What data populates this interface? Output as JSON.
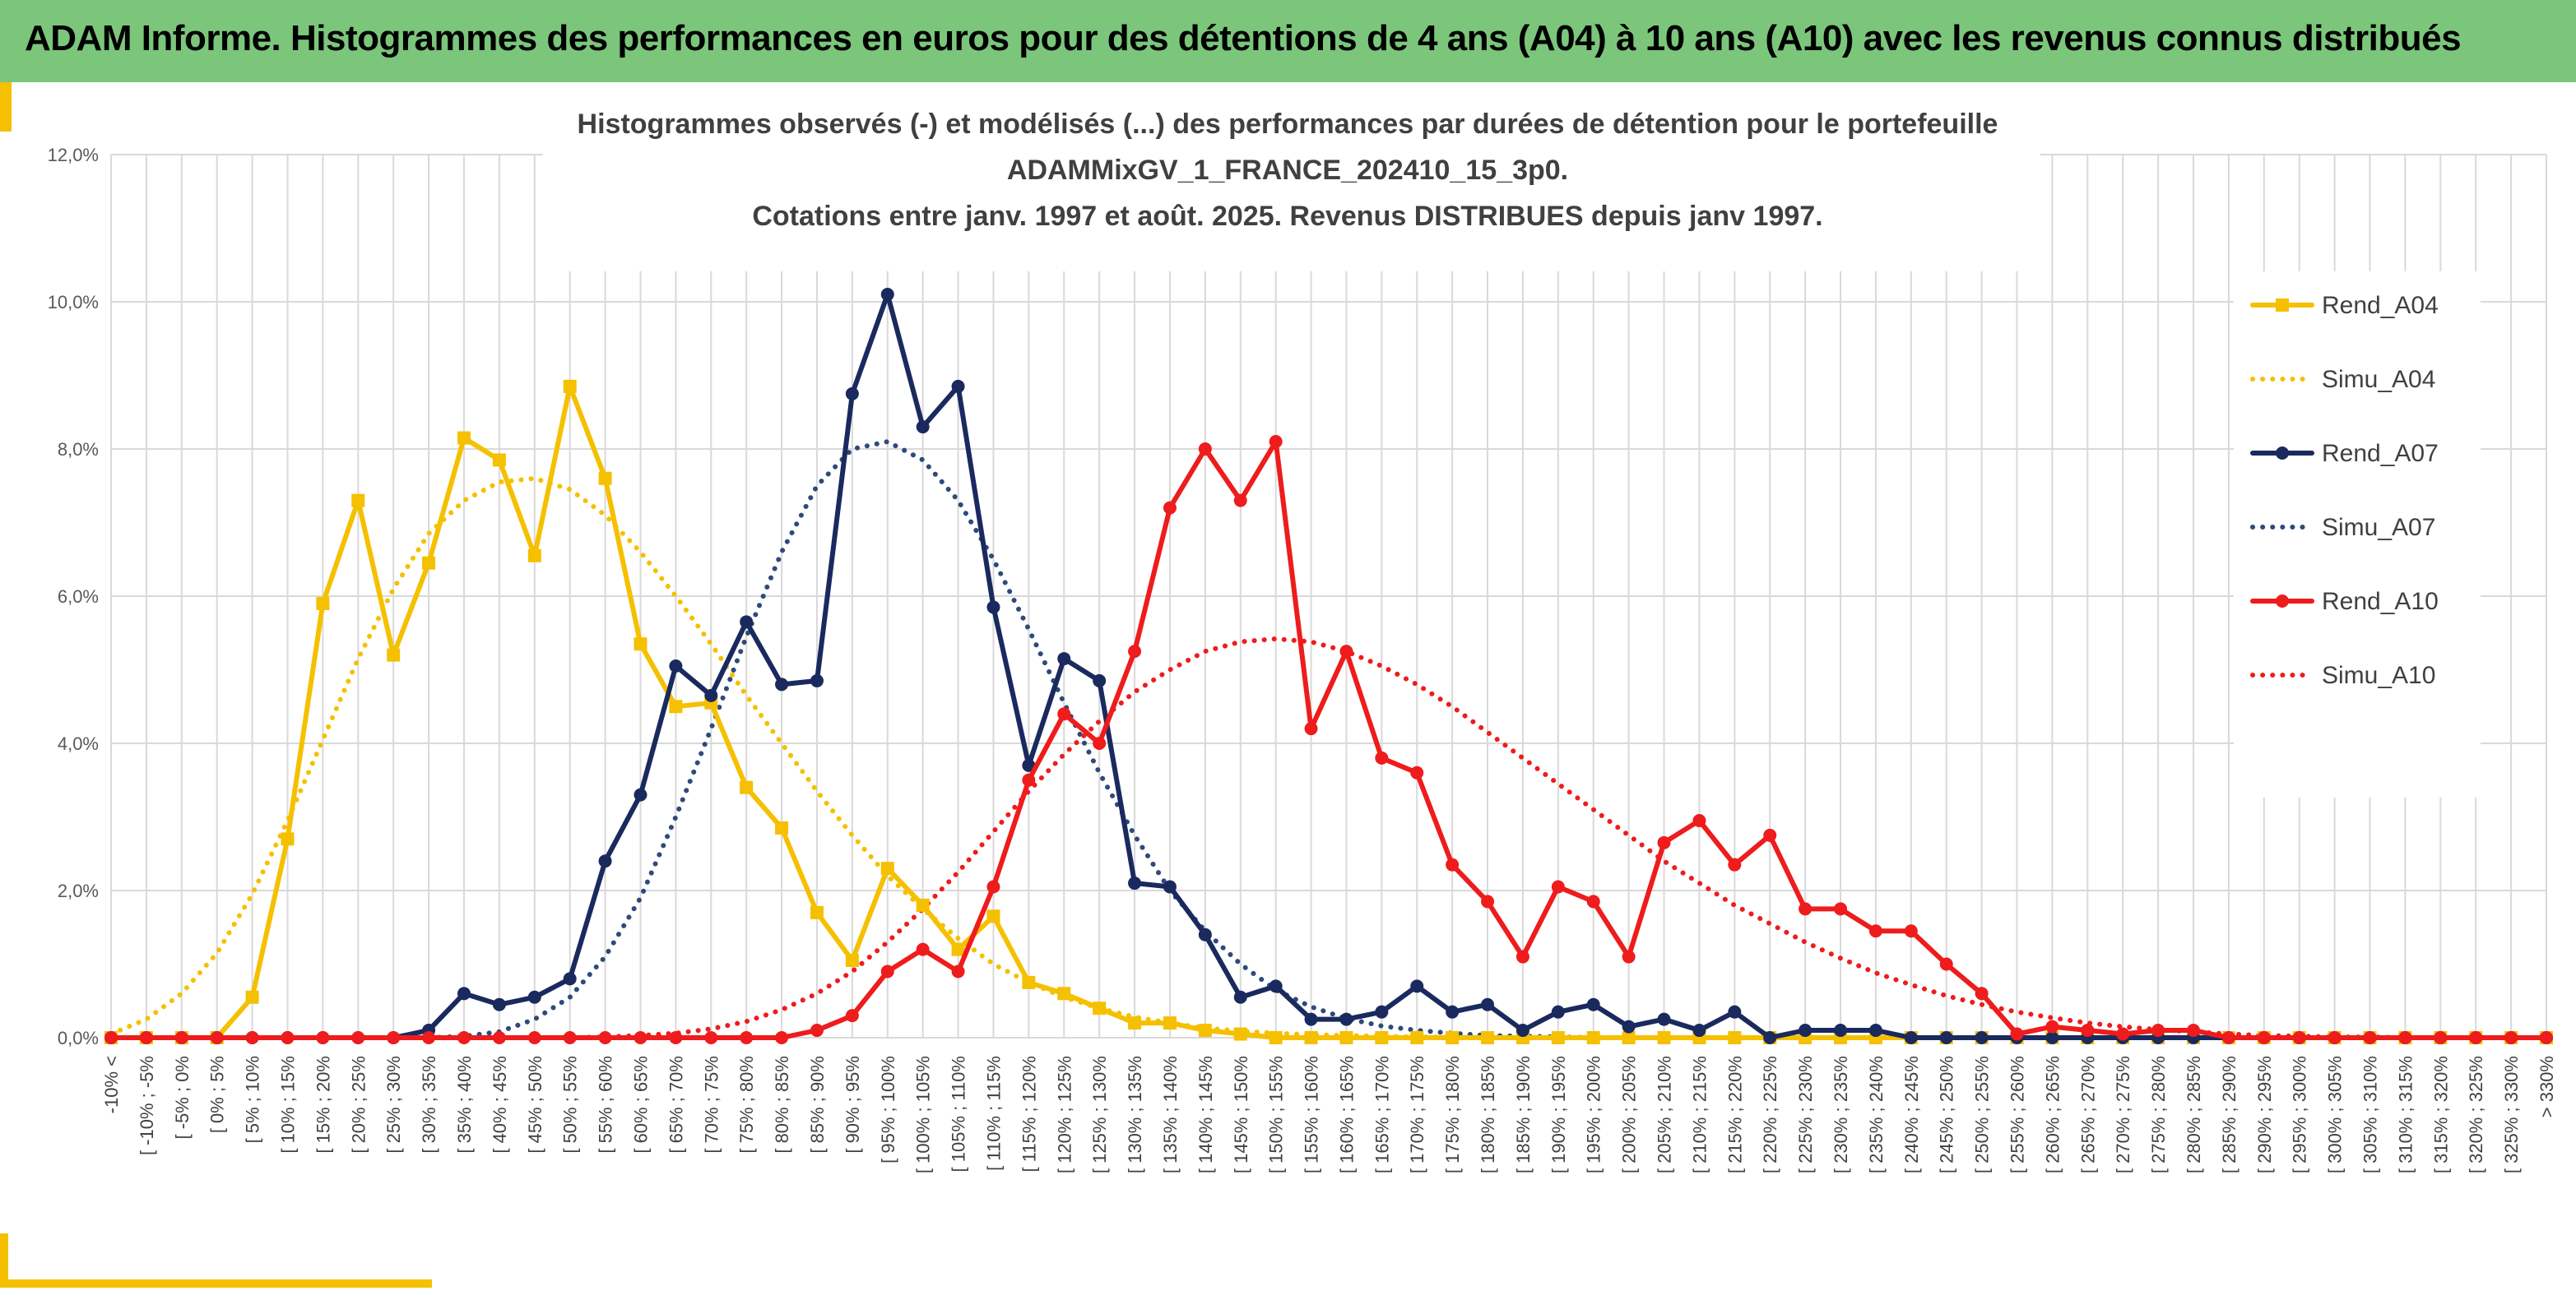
{
  "header": {
    "title": "ADAM Informe. Histogrammes des performances en euros pour des détentions de 4 ans (A04) à 10 ans (A10) avec les revenus connus distribués"
  },
  "colors": {
    "banner": "#7bc67b",
    "accent": "#f5c000",
    "A04": "#f5c000",
    "A07": "#1a2a5e",
    "A10": "#ee1c1c",
    "simu_A07": "#2e4a7a"
  },
  "chart_data": {
    "type": "line",
    "title": [
      "Histogrammes observés (-) et modélisés (...) des performances par durées de détention pour le portefeuille",
      "ADAMMixGV_1_FRANCE_202410_15_3p0.",
      "Cotations entre janv. 1997 et août. 2025. Revenus DISTRIBUES depuis janv 1997."
    ],
    "xlabel": "",
    "ylabel": "",
    "ylim": [
      0,
      12
    ],
    "yticks": [
      "0,0%",
      "2,0%",
      "4,0%",
      "6,0%",
      "8,0%",
      "10,0%",
      "12,0%"
    ],
    "grid": true,
    "legend_position": "right",
    "categories": [
      "-10% <",
      "[ -10% ; -5%",
      "[ -5% ; 0%",
      "[ 0% ; 5%",
      "[ 5% ; 10%",
      "[ 10% ; 15%",
      "[ 15% ; 20%",
      "[ 20% ; 25%",
      "[ 25% ; 30%",
      "[ 30% ; 35%",
      "[ 35% ; 40%",
      "[ 40% ; 45%",
      "[ 45% ; 50%",
      "[ 50% ; 55%",
      "[ 55% ; 60%",
      "[ 60% ; 65%",
      "[ 65% ; 70%",
      "[ 70% ; 75%",
      "[ 75% ; 80%",
      "[ 80% ; 85%",
      "[ 85% ; 90%",
      "[ 90% ; 95%",
      "[ 95% ; 100%",
      "[ 100% ; 105%",
      "[ 105% ; 110%",
      "[ 110% ; 115%",
      "[ 115% ; 120%",
      "[ 120% ; 125%",
      "[ 125% ; 130%",
      "[ 130% ; 135%",
      "[ 135% ; 140%",
      "[ 140% ; 145%",
      "[ 145% ; 150%",
      "[ 150% ; 155%",
      "[ 155% ; 160%",
      "[ 160% ; 165%",
      "[ 165% ; 170%",
      "[ 170% ; 175%",
      "[ 175% ; 180%",
      "[ 180% ; 185%",
      "[ 185% ; 190%",
      "[ 190% ; 195%",
      "[ 195% ; 200%",
      "[ 200% ; 205%",
      "[ 205% ; 210%",
      "[ 210% ; 215%",
      "[ 215% ; 220%",
      "[ 220% ; 225%",
      "[ 225% ; 230%",
      "[ 230% ; 235%",
      "[ 235% ; 240%",
      "[ 240% ; 245%",
      "[ 245% ; 250%",
      "[ 250% ; 255%",
      "[ 255% ; 260%",
      "[ 260% ; 265%",
      "[ 265% ; 270%",
      "[ 270% ; 275%",
      "[ 275% ; 280%",
      "[ 280% ; 285%",
      "[ 285% ; 290%",
      "[ 290% ; 295%",
      "[ 295% ; 300%",
      "[ 300% ; 305%",
      "[ 305% ; 310%",
      "[ 310% ; 315%",
      "[ 315% ; 320%",
      "[ 320% ; 325%",
      "[ 325% ; 330%",
      "> 330%"
    ],
    "series": [
      {
        "name": "Rend_A04",
        "style": "solid",
        "marker": "square",
        "color": "#f5c000",
        "values": [
          0,
          0,
          0,
          0,
          0.55,
          2.7,
          5.9,
          7.3,
          5.2,
          6.45,
          8.15,
          7.85,
          6.55,
          8.85,
          7.6,
          5.35,
          4.5,
          4.55,
          3.4,
          2.85,
          1.7,
          1.05,
          2.3,
          1.8,
          1.2,
          1.65,
          0.75,
          0.6,
          0.4,
          0.2,
          0.2,
          0.1,
          0.05,
          0,
          0,
          0,
          0,
          0,
          0,
          0,
          0,
          0,
          0,
          0,
          0,
          0,
          0,
          0,
          0,
          0,
          0,
          0,
          0,
          0,
          0,
          0,
          0,
          0,
          0,
          0,
          0,
          0,
          0,
          0,
          0,
          0,
          0,
          0,
          0,
          0
        ]
      },
      {
        "name": "Simu_A04",
        "style": "dotted",
        "marker": "none",
        "color": "#f5c000",
        "values": [
          0.05,
          0.25,
          0.6,
          1.15,
          1.95,
          2.95,
          4.05,
          5.15,
          6.1,
          6.85,
          7.3,
          7.55,
          7.6,
          7.45,
          7.1,
          6.6,
          6.0,
          5.35,
          4.65,
          4.0,
          3.35,
          2.75,
          2.2,
          1.75,
          1.35,
          1.0,
          0.75,
          0.55,
          0.4,
          0.28,
          0.2,
          0.13,
          0.09,
          0.06,
          0.04,
          0.03,
          0.02,
          0.01,
          0.01,
          0,
          0,
          0,
          0,
          0,
          0,
          0,
          0,
          0,
          0,
          0,
          0,
          0,
          0,
          0,
          0,
          0,
          0,
          0,
          0,
          0,
          0,
          0,
          0,
          0,
          0,
          0,
          0,
          0,
          0,
          0
        ]
      },
      {
        "name": "Rend_A07",
        "style": "solid",
        "marker": "circle",
        "color": "#1a2a5e",
        "values": [
          0,
          0,
          0,
          0,
          0,
          0,
          0,
          0,
          0,
          0.1,
          0.6,
          0.45,
          0.55,
          0.8,
          2.4,
          3.3,
          5.05,
          4.65,
          5.65,
          4.8,
          4.85,
          8.75,
          10.1,
          8.3,
          8.85,
          5.85,
          3.7,
          5.15,
          4.85,
          2.1,
          2.05,
          1.4,
          0.55,
          0.7,
          0.25,
          0.25,
          0.35,
          0.7,
          0.35,
          0.45,
          0.1,
          0.35,
          0.45,
          0.15,
          0.25,
          0.1,
          0.35,
          0,
          0.1,
          0.1,
          0.1,
          0,
          0,
          0,
          0,
          0,
          0,
          0,
          0,
          0,
          0,
          0,
          0,
          0,
          0,
          0,
          0,
          0,
          0,
          0
        ]
      },
      {
        "name": "Simu_A07",
        "style": "dotted",
        "marker": "none",
        "color": "#2e4a7a",
        "values": [
          0,
          0,
          0,
          0,
          0,
          0,
          0,
          0,
          0,
          0,
          0.02,
          0.08,
          0.25,
          0.55,
          1.1,
          1.9,
          3.0,
          4.2,
          5.45,
          6.6,
          7.5,
          8.0,
          8.1,
          7.85,
          7.3,
          6.5,
          5.55,
          4.55,
          3.6,
          2.75,
          2.0,
          1.45,
          1.0,
          0.65,
          0.42,
          0.26,
          0.16,
          0.1,
          0.06,
          0.03,
          0.02,
          0.01,
          0,
          0,
          0,
          0,
          0,
          0,
          0,
          0,
          0,
          0,
          0,
          0,
          0,
          0,
          0,
          0,
          0,
          0,
          0,
          0,
          0,
          0,
          0,
          0,
          0,
          0,
          0,
          0
        ]
      },
      {
        "name": "Rend_A10",
        "style": "solid",
        "marker": "circle",
        "color": "#ee1c1c",
        "values": [
          0,
          0,
          0,
          0,
          0,
          0,
          0,
          0,
          0,
          0,
          0,
          0,
          0,
          0,
          0,
          0,
          0,
          0,
          0,
          0,
          0.1,
          0.3,
          0.9,
          1.2,
          0.9,
          2.05,
          3.5,
          4.4,
          4.0,
          5.25,
          7.2,
          8.0,
          7.3,
          8.1,
          4.2,
          5.25,
          3.8,
          3.6,
          2.35,
          1.85,
          1.1,
          2.05,
          1.85,
          1.1,
          2.65,
          2.95,
          2.35,
          2.75,
          1.75,
          1.75,
          1.45,
          1.45,
          1.0,
          0.6,
          0.05,
          0.15,
          0.1,
          0.05,
          0.1,
          0.1,
          0,
          0,
          0,
          0,
          0,
          0,
          0,
          0,
          0,
          0
        ]
      },
      {
        "name": "Simu_A10",
        "style": "dotted",
        "marker": "none",
        "color": "#ee1c1c",
        "values": [
          0,
          0,
          0,
          0,
          0,
          0,
          0,
          0,
          0,
          0,
          0,
          0,
          0,
          0,
          0.01,
          0.03,
          0.06,
          0.12,
          0.22,
          0.38,
          0.6,
          0.9,
          1.3,
          1.75,
          2.25,
          2.8,
          3.35,
          3.85,
          4.3,
          4.7,
          5.0,
          5.25,
          5.38,
          5.42,
          5.38,
          5.25,
          5.05,
          4.8,
          4.5,
          4.15,
          3.8,
          3.45,
          3.1,
          2.75,
          2.4,
          2.1,
          1.8,
          1.55,
          1.3,
          1.08,
          0.88,
          0.72,
          0.57,
          0.45,
          0.35,
          0.27,
          0.2,
          0.15,
          0.11,
          0.08,
          0.05,
          0.03,
          0.02,
          0.01,
          0.01,
          0,
          0,
          0,
          0,
          0
        ]
      }
    ]
  }
}
